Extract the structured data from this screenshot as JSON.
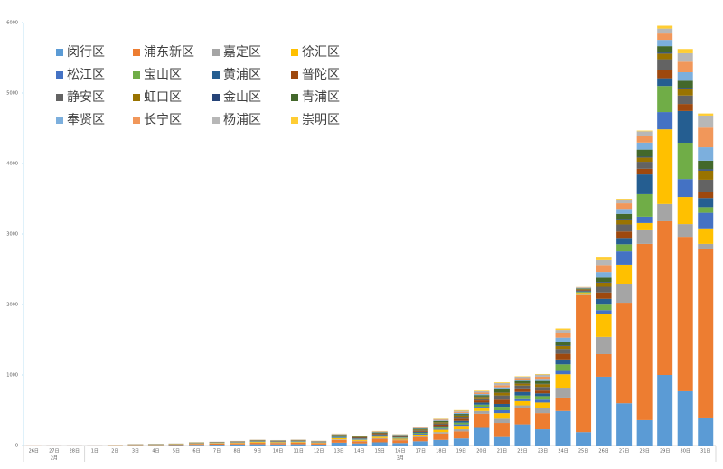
{
  "chart_data": {
    "type": "stacked_bar",
    "categories": [
      "26日",
      "27日",
      "28日",
      "1日",
      "2日",
      "3日",
      "4日",
      "5日",
      "6日",
      "7日",
      "8日",
      "9日",
      "10日",
      "11日",
      "12日",
      "13日",
      "14日",
      "15日",
      "16日",
      "17日",
      "18日",
      "19日",
      "20日",
      "21日",
      "22日",
      "23日",
      "24日",
      "25日",
      "26日",
      "27日",
      "28日",
      "29日",
      "30日",
      "31日"
    ],
    "category_groups": [
      {
        "label": "2月",
        "count": 3
      },
      {
        "label": "3月",
        "count": 31
      }
    ],
    "ylim": [
      0,
      6000
    ],
    "yticks": [
      0,
      1000,
      2000,
      3000,
      4000,
      5000,
      6000
    ],
    "legend": "top-left",
    "series": [
      {
        "name": "闵行区",
        "color": "#5b9bd5",
        "values": [
          0,
          1,
          1,
          1,
          2,
          4,
          5,
          7,
          10,
          12,
          15,
          18,
          16,
          18,
          14,
          40,
          30,
          45,
          35,
          60,
          80,
          100,
          250,
          120,
          300,
          230,
          490,
          190,
          975,
          600,
          360,
          1000,
          770,
          385
        ]
      },
      {
        "name": "浦东新区",
        "color": "#ed7d31",
        "values": [
          1,
          1,
          1,
          1,
          3,
          5,
          5,
          8,
          12,
          15,
          16,
          20,
          20,
          22,
          18,
          40,
          30,
          50,
          40,
          60,
          90,
          100,
          200,
          200,
          230,
          230,
          190,
          1940,
          320,
          1425,
          2500,
          2180,
          2190,
          2410
        ]
      },
      {
        "name": "嘉定区",
        "color": "#a5a5a5",
        "values": [
          0,
          0,
          0,
          0,
          0,
          1,
          1,
          1,
          2,
          3,
          3,
          4,
          3,
          4,
          3,
          8,
          6,
          10,
          8,
          10,
          20,
          30,
          40,
          60,
          40,
          70,
          140,
          20,
          245,
          270,
          205,
          245,
          180,
          65
        ]
      },
      {
        "name": "徐汇区",
        "color": "#ffc000",
        "values": [
          0,
          0,
          0,
          0,
          1,
          2,
          2,
          3,
          5,
          6,
          7,
          10,
          8,
          9,
          7,
          15,
          14,
          20,
          15,
          25,
          35,
          50,
          40,
          80,
          60,
          80,
          190,
          15,
          320,
          270,
          90,
          1060,
          385,
          220
        ]
      },
      {
        "name": "松江区",
        "color": "#4472c4",
        "values": [
          0,
          0,
          0,
          0,
          0,
          1,
          1,
          1,
          2,
          2,
          3,
          3,
          3,
          3,
          3,
          8,
          7,
          8,
          7,
          12,
          15,
          20,
          20,
          40,
          40,
          40,
          60,
          5,
          60,
          190,
          90,
          245,
          255,
          220
        ]
      },
      {
        "name": "宝山区",
        "color": "#70ad47",
        "values": [
          0,
          0,
          0,
          0,
          0,
          1,
          1,
          1,
          2,
          2,
          3,
          4,
          3,
          4,
          3,
          8,
          6,
          10,
          8,
          12,
          15,
          25,
          30,
          50,
          40,
          50,
          80,
          10,
          90,
          100,
          320,
          370,
          515,
          80
        ]
      },
      {
        "name": "黄浦区",
        "color": "#255e91",
        "values": [
          0,
          0,
          0,
          0,
          0,
          0,
          1,
          1,
          2,
          2,
          3,
          4,
          4,
          4,
          3,
          8,
          8,
          10,
          8,
          12,
          20,
          25,
          30,
          40,
          50,
          40,
          70,
          10,
          70,
          90,
          280,
          110,
          450,
          130
        ]
      },
      {
        "name": "普陀区",
        "color": "#9e480e",
        "values": [
          0,
          0,
          0,
          0,
          0,
          1,
          1,
          1,
          2,
          2,
          3,
          4,
          4,
          4,
          3,
          8,
          8,
          10,
          8,
          12,
          20,
          30,
          30,
          60,
          50,
          40,
          80,
          10,
          90,
          90,
          80,
          120,
          100,
          90
        ]
      },
      {
        "name": "静安区",
        "color": "#636363",
        "values": [
          0,
          0,
          0,
          0,
          1,
          1,
          1,
          1,
          2,
          3,
          3,
          4,
          4,
          4,
          3,
          8,
          8,
          10,
          8,
          12,
          18,
          25,
          30,
          60,
          40,
          50,
          70,
          10,
          80,
          100,
          100,
          150,
          120,
          170
        ]
      },
      {
        "name": "虹口区",
        "color": "#997300",
        "values": [
          0,
          0,
          0,
          0,
          0,
          1,
          1,
          1,
          2,
          2,
          2,
          3,
          3,
          3,
          2,
          5,
          5,
          7,
          5,
          10,
          15,
          20,
          20,
          40,
          30,
          40,
          40,
          8,
          60,
          70,
          60,
          80,
          90,
          130
        ]
      },
      {
        "name": "金山区",
        "color": "#264478",
        "values": [
          0,
          0,
          0,
          0,
          0,
          0,
          0,
          0,
          0,
          0,
          0,
          0,
          0,
          0,
          0,
          1,
          1,
          1,
          1,
          2,
          3,
          3,
          5,
          5,
          5,
          5,
          10,
          2,
          10,
          10,
          12,
          15,
          20,
          20
        ]
      },
      {
        "name": "青浦区",
        "color": "#43682b",
        "values": [
          0,
          0,
          0,
          0,
          0,
          1,
          1,
          1,
          2,
          2,
          2,
          3,
          3,
          3,
          2,
          5,
          5,
          7,
          5,
          10,
          15,
          20,
          20,
          40,
          30,
          40,
          50,
          8,
          60,
          70,
          100,
          90,
          100,
          120
        ]
      },
      {
        "name": "奉贤区",
        "color": "#7cafdd",
        "values": [
          0,
          0,
          0,
          0,
          0,
          0,
          1,
          1,
          1,
          1,
          2,
          2,
          2,
          2,
          2,
          4,
          4,
          5,
          4,
          8,
          10,
          15,
          15,
          30,
          20,
          30,
          60,
          6,
          80,
          70,
          100,
          90,
          120,
          190
        ]
      },
      {
        "name": "长宁区",
        "color": "#f1975a",
        "values": [
          0,
          0,
          0,
          0,
          0,
          1,
          1,
          1,
          1,
          1,
          2,
          2,
          2,
          2,
          2,
          4,
          4,
          5,
          4,
          8,
          10,
          15,
          20,
          30,
          20,
          30,
          60,
          5,
          100,
          80,
          100,
          90,
          150,
          280
        ]
      },
      {
        "name": "杨浦区",
        "color": "#b7b7b7",
        "values": [
          0,
          0,
          0,
          0,
          0,
          1,
          1,
          1,
          1,
          1,
          1,
          2,
          2,
          2,
          2,
          4,
          4,
          5,
          4,
          8,
          10,
          15,
          20,
          30,
          20,
          30,
          50,
          6,
          70,
          55,
          60,
          70,
          120,
          170
        ]
      },
      {
        "name": "崇明区",
        "color": "#ffcd33",
        "values": [
          0,
          0,
          0,
          0,
          0,
          0,
          1,
          0,
          1,
          0,
          0,
          1,
          0,
          1,
          1,
          2,
          1,
          3,
          1,
          4,
          5,
          9,
          8,
          10,
          6,
          8,
          20,
          2,
          48,
          10,
          10,
          40,
          60,
          30
        ]
      }
    ]
  }
}
